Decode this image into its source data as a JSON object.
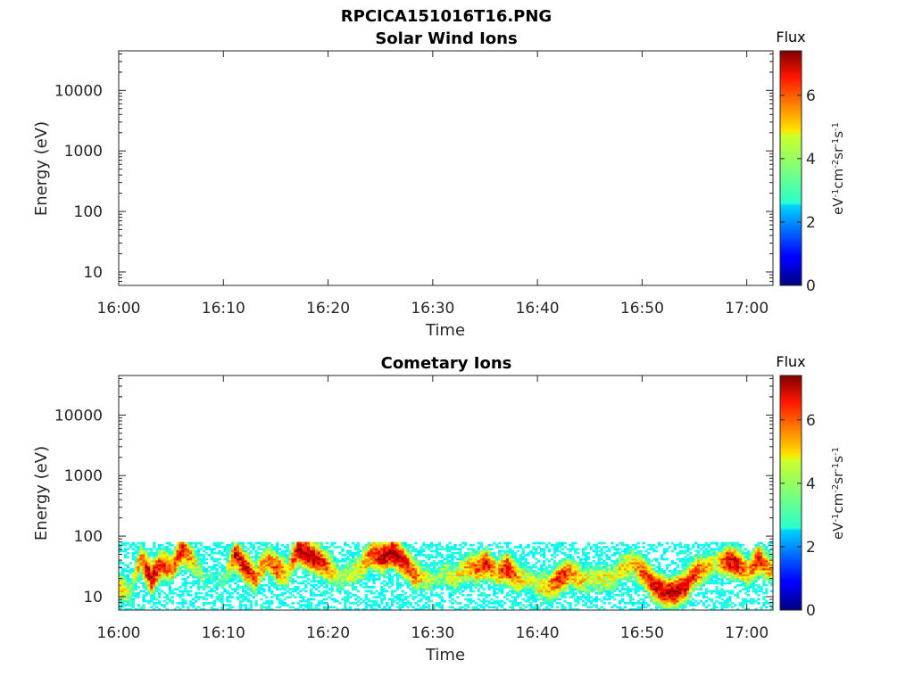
{
  "figure": {
    "title": "RPCICA151016T16.PNG"
  },
  "chart_data": [
    {
      "type": "heatmap",
      "title": "Solar Wind Ions",
      "xlabel": "Time",
      "ylabel": "Energy (eV)",
      "x_ticks": [
        "16:00",
        "16:10",
        "16:20",
        "16:30",
        "16:40",
        "16:50",
        "17:00"
      ],
      "x_range_minutes": [
        0,
        62.5
      ],
      "y_scale": "log",
      "y_ticks": [
        "10",
        "100",
        "1000",
        "10000"
      ],
      "y_range": [
        6,
        45000
      ],
      "colorbar": {
        "title": "Flux",
        "label": "eV-1cm-2sr-1s-1",
        "ticks": [
          "0",
          "2",
          "4",
          "6"
        ],
        "range": [
          0,
          7.4
        ],
        "colormap": "jet"
      },
      "data": []
    },
    {
      "type": "heatmap",
      "title": "Cometary Ions",
      "xlabel": "Time",
      "ylabel": "Energy (eV)",
      "x_ticks": [
        "16:00",
        "16:10",
        "16:20",
        "16:30",
        "16:40",
        "16:50",
        "17:00"
      ],
      "x_range_minutes": [
        0,
        62.5
      ],
      "y_scale": "log",
      "y_ticks": [
        "10",
        "100",
        "1000",
        "10000"
      ],
      "y_range": [
        6,
        45000
      ],
      "colorbar": {
        "title": "Flux",
        "label": "eV-1cm-2sr-1s-1",
        "ticks": [
          "0",
          "2",
          "4",
          "6"
        ],
        "range": [
          0,
          7.4
        ],
        "colormap": "jet"
      },
      "energy_range_ev": [
        6,
        80
      ],
      "flux_profile": {
        "minutes": [
          0,
          1,
          2,
          2.5,
          3,
          4,
          5,
          6,
          7,
          8,
          9,
          10,
          11,
          12,
          13,
          14,
          15,
          16,
          17,
          18,
          19,
          20,
          21,
          22,
          23,
          24,
          25,
          26,
          27,
          28,
          29,
          30,
          31,
          32,
          33,
          34,
          35,
          36,
          37,
          38,
          39,
          40,
          41,
          42,
          43,
          44,
          45,
          46,
          47,
          48,
          49,
          50,
          51,
          52,
          53,
          54,
          55,
          56,
          57,
          58,
          59,
          60,
          61,
          62
        ],
        "peak_flux": [
          5.2,
          4.0,
          5.6,
          6.8,
          7.0,
          6.2,
          5.8,
          6.6,
          5.0,
          3.2,
          3.0,
          3.4,
          6.6,
          6.8,
          5.6,
          5.4,
          6.2,
          4.8,
          7.0,
          7.2,
          6.8,
          5.6,
          4.0,
          4.2,
          5.0,
          6.0,
          7.0,
          7.2,
          6.8,
          6.0,
          4.6,
          3.8,
          4.0,
          4.6,
          5.0,
          5.8,
          6.6,
          5.2,
          6.8,
          5.4,
          4.2,
          4.6,
          5.2,
          6.6,
          5.6,
          5.0,
          4.2,
          4.6,
          4.4,
          4.8,
          5.0,
          6.2,
          6.6,
          7.0,
          7.2,
          6.8,
          6.2,
          5.2,
          4.4,
          6.6,
          6.8,
          5.2,
          6.6,
          5.4
        ],
        "peak_energy_ev": [
          14,
          12,
          40,
          30,
          20,
          35,
          30,
          60,
          40,
          20,
          20,
          20,
          50,
          30,
          20,
          40,
          30,
          25,
          60,
          50,
          40,
          30,
          20,
          25,
          30,
          50,
          45,
          55,
          40,
          25,
          20,
          20,
          25,
          20,
          30,
          30,
          35,
          25,
          30,
          20,
          20,
          15,
          15,
          20,
          25,
          20,
          20,
          20,
          20,
          30,
          35,
          25,
          15,
          12,
          12,
          15,
          25,
          30,
          35,
          40,
          35,
          25,
          40,
          30
        ]
      }
    }
  ]
}
